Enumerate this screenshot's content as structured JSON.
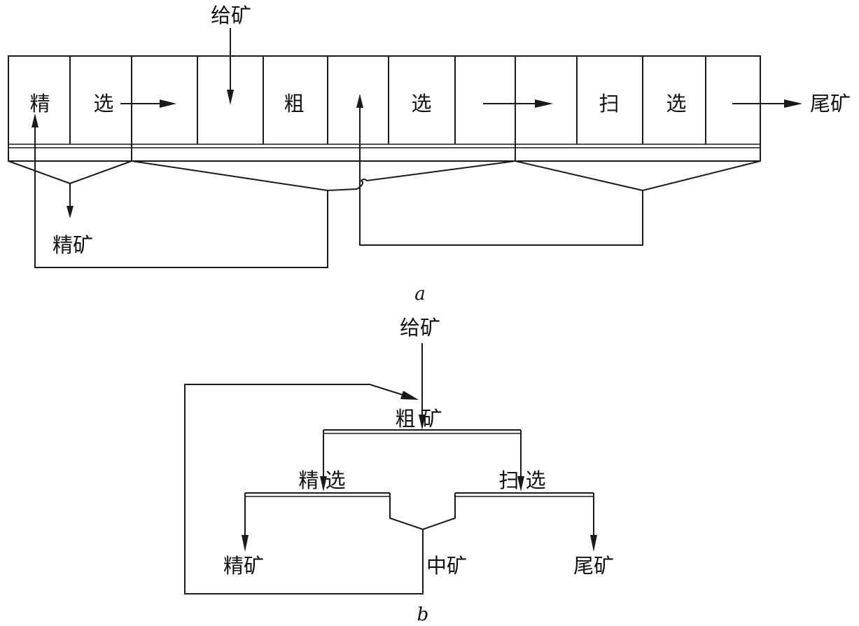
{
  "diagram_a": {
    "caption": "a",
    "feed": "给矿",
    "cleaning_label_1": "精",
    "cleaning_label_2": "选",
    "rougher_label_1": "粗",
    "rougher_label_2": "选",
    "scavenger_label_1": "扫",
    "scavenger_label_2": "选",
    "tailings": "尾矿",
    "concentrate": "精矿"
  },
  "diagram_b": {
    "caption": "b",
    "feed": "给矿",
    "rougher": "粗 矿",
    "cleaning": "精 选",
    "scavenger": "扫 选",
    "concentrate": "精矿",
    "middlings": "中矿",
    "tailings": "尾矿"
  },
  "colors": {
    "line": "#1a1a1a",
    "background": "#ffffff"
  }
}
